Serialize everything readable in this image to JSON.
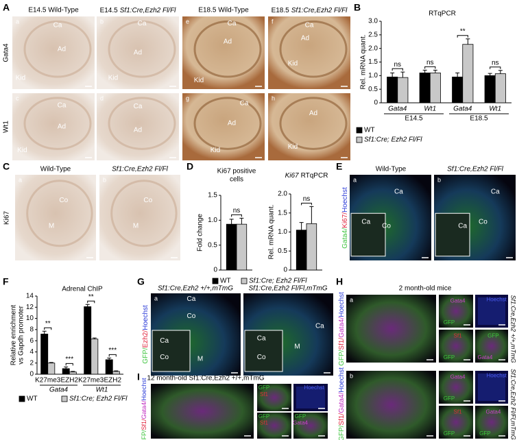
{
  "panels": {
    "A": {
      "letter": "A",
      "headers": [
        {
          "text": "E14.5 Wild-Type"
        },
        {
          "text": "E14.5",
          "italic": "Sf1:Cre,Ezh2 Fl/Fl"
        },
        {
          "text": "E18.5 Wild-Type"
        },
        {
          "text": "E18.5",
          "italic": "Sf1:Cre,Ezh2 Fl/Fl"
        }
      ],
      "rows": [
        "Gata4",
        "Wt1"
      ],
      "tiles": [
        {
          "letter": "a",
          "labels": [
            "Ca",
            "Ad",
            "Kid"
          ]
        },
        {
          "letter": "b",
          "labels": [
            "Ca",
            "Ad",
            "Kid"
          ]
        },
        {
          "letter": "e",
          "labels": [
            "Ca",
            "Ad",
            "Kid"
          ]
        },
        {
          "letter": "f",
          "labels": [
            "Ca",
            "Ad",
            "Kid"
          ]
        },
        {
          "letter": "c",
          "labels": [
            "Ca",
            "Ad",
            "Kid"
          ]
        },
        {
          "letter": "d",
          "labels": [
            "Ca",
            "Ad"
          ]
        },
        {
          "letter": "g",
          "labels": [
            "Ca",
            "Ad",
            "Kid"
          ]
        },
        {
          "letter": "h",
          "labels": [
            "Ad",
            "Kid"
          ]
        }
      ]
    },
    "B": {
      "letter": "B",
      "chart": {
        "type": "bar",
        "title": "RTqPCR",
        "ylabel": [
          "Rel. mRNA quant."
        ],
        "ylim": [
          0,
          3
        ],
        "yticks": [
          0,
          0.5,
          {
            "value": 1,
            "label": "1.0"
          },
          1.5,
          {
            "value": 2,
            "label": "2.0"
          },
          2.5,
          {
            "value": 3,
            "label": "3.0"
          }
        ],
        "categories": [
          "Gata4",
          "Wt1",
          "Gata4",
          "Wt1"
        ],
        "groups": [
          "E14.5",
          "E18.5"
        ],
        "series": [
          {
            "name": "WT",
            "color": "#000000",
            "values": [
              0.95,
              1.1,
              0.95,
              1.0
            ],
            "errors": [
              0.15,
              0.1,
              0.15,
              0.08
            ]
          },
          {
            "name": "Sf1:Cre; Ezh2 Fl/Fl",
            "color": "#c8c8c8",
            "values": [
              0.93,
              1.1,
              2.15,
              1.07
            ],
            "errors": [
              0.2,
              0.1,
              0.2,
              0.12
            ]
          }
        ],
        "significance": [
          "ns",
          "ns",
          "**",
          "ns"
        ]
      }
    },
    "C": {
      "letter": "C",
      "row": "Ki67",
      "headers": [
        {
          "text": "Wild-Type"
        },
        {
          "italic": "Sf1:Cre,Ezh2 Fl/Fl"
        }
      ],
      "tiles": [
        {
          "letter": "a",
          "labels": [
            "Co",
            "M"
          ]
        },
        {
          "letter": "b",
          "labels": [
            "Co",
            "M"
          ]
        }
      ]
    },
    "D": {
      "letter": "D",
      "charts": [
        {
          "type": "bar",
          "title": [
            "Ki67 positive",
            "cells"
          ],
          "ylabel": [
            "Fold change"
          ],
          "ylim": [
            0,
            1.5
          ],
          "yticks": [
            0,
            0.5,
            {
              "value": 1,
              "label": "1.0"
            },
            1.5
          ],
          "series": [
            {
              "name": "WT",
              "color": "#000000",
              "values": [
                0.92
              ],
              "errors": [
                0.1
              ]
            },
            {
              "name": "Sf1:Cre; Ezh2 Fl/Fl",
              "color": "#c8c8c8",
              "values": [
                0.92
              ],
              "errors": [
                0.12
              ]
            }
          ],
          "significance": [
            "ns"
          ]
        },
        {
          "type": "bar",
          "title": [
            {
              "italic": "Ki67",
              "text": "RTqPCR"
            }
          ],
          "ylabel": [
            "Rel. mRNA quant."
          ],
          "ylim": [
            0,
            2
          ],
          "yticks": [
            0,
            0.5,
            {
              "value": 1,
              "label": "1.0"
            },
            1.5,
            {
              "value": 2,
              "label": "2.0"
            }
          ],
          "series": [
            {
              "color": "#000000",
              "values": [
                1.05
              ],
              "errors": [
                0.2
              ]
            },
            {
              "color": "#c8c8c8",
              "values": [
                1.22
              ],
              "errors": [
                0.45
              ]
            }
          ],
          "significance": [
            "ns"
          ]
        }
      ]
    },
    "E": {
      "letter": "E",
      "side": [
        "Gata4/",
        "Ki67/",
        "Hoechst"
      ],
      "headers": [
        {
          "text": "Wild-Type"
        },
        {
          "italic": "Sf1:Cre,Ezh2 Fl/Fl"
        }
      ],
      "tiles": [
        {
          "letter": "a",
          "labels": [
            "Ca",
            "Co",
            "Ca"
          ]
        },
        {
          "letter": "b",
          "labels": [
            "Ca",
            "Co",
            "Ca"
          ]
        }
      ]
    },
    "F": {
      "letter": "F",
      "chart": {
        "type": "bar",
        "title": "Adrenal ChIP",
        "ylabel": [
          "Relative enrichment",
          "vs Gapdh promoter"
        ],
        "ylim": [
          0,
          14
        ],
        "yticks": [
          0,
          2,
          4,
          6,
          8,
          10,
          12,
          14
        ],
        "categories": [
          "K27me3",
          "EZH2",
          "K27me3",
          "EZH2"
        ],
        "groups": [
          "Gata4",
          "Wt1"
        ],
        "series": [
          {
            "name": "WT",
            "color": "#000000",
            "values": [
              7.2,
              1.0,
              12.1,
              2.6
            ],
            "errors": [
              0.5,
              0.3,
              0.4,
              0.3
            ]
          },
          {
            "name": "Sf1:Cre; Ezh2 Fl/Fl",
            "color": "#c8c8c8",
            "values": [
              2.0,
              0.4,
              6.3,
              0.5
            ],
            "errors": [
              0.1,
              0.1,
              0.2,
              0.1
            ]
          }
        ],
        "significance": [
          "**",
          "***",
          "**",
          "***"
        ]
      }
    },
    "G": {
      "letter": "G",
      "side": [
        "GFP/",
        "Ezh2/",
        "Hoechst"
      ],
      "headers": [
        {
          "italic": "Sf1:Cre,Ezh2 +/+,mTmG"
        },
        {
          "italic": "Sf1:Cre,Ezh2 Fl/Fl,mTmG"
        }
      ],
      "tiles": [
        {
          "letter": "a",
          "labels": [
            "Ca",
            "Co",
            "M",
            "Ca",
            "Co"
          ]
        },
        {
          "labels": [
            "Ca",
            "M",
            "Ca",
            "Co"
          ]
        }
      ]
    },
    "H": {
      "letter": "H",
      "title": "2 month-old mice",
      "side": [
        "GFP/",
        "Sf1/",
        "Gata4/",
        "Hoechst"
      ],
      "genotypes": [
        "Sf1:Cre,Ezh2 +/+,mTmG",
        "Sf1:Cre,Ezh2 Fl/Fl,mTmG"
      ],
      "tiles": [
        {
          "letter": "a"
        },
        {
          "labels": [
            "Gata4",
            "GFP"
          ]
        },
        {
          "labels": [
            "Hoechst"
          ]
        },
        {
          "labels": [
            "Sf1",
            "GFP"
          ]
        },
        {
          "labels": [
            "GFP",
            "Gata4"
          ]
        },
        {
          "letter": "b"
        },
        {
          "labels": [
            "Gata4",
            "GFP"
          ]
        },
        {
          "labels": [
            "Hoechst"
          ]
        },
        {
          "labels": [
            "Sf1",
            "GFP"
          ]
        },
        {
          "labels": [
            "Gata4",
            "GFP"
          ]
        }
      ]
    },
    "I": {
      "letter": "I",
      "title": "12 month-old Sf1:Cre,Ezh2 +/+,mTmG",
      "side": [
        "GFP/",
        "Sf1/",
        "Gata4/",
        "Hoechst"
      ],
      "tiles": [
        {},
        {
          "labels": [
            "GFP",
            "Sf1"
          ]
        },
        {
          "labels": [
            "Hoechst"
          ]
        },
        {
          "labels": [
            "GFP",
            "Sf1"
          ]
        },
        {
          "labels": [
            "GFP",
            "Gata4"
          ]
        }
      ]
    }
  }
}
